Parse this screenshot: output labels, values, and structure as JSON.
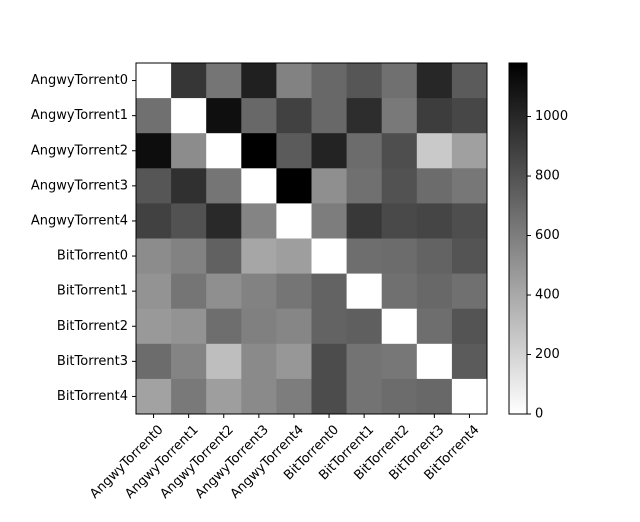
{
  "chart_data": {
    "type": "heatmap",
    "title": "",
    "xlabel": "",
    "ylabel": "",
    "colormap": "gray_r",
    "colors": {
      "low": "#ffffff",
      "high": "#000000",
      "axis": "#000000"
    },
    "x_categories": [
      "AngwyTorrent0",
      "AngwyTorrent1",
      "AngwyTorrent2",
      "AngwyTorrent3",
      "AngwyTorrent4",
      "BitTorrent0",
      "BitTorrent1",
      "BitTorrent2",
      "BitTorrent3",
      "BitTorrent4"
    ],
    "y_categories": [
      "AngwyTorrent0",
      "AngwyTorrent1",
      "AngwyTorrent2",
      "AngwyTorrent3",
      "AngwyTorrent4",
      "BitTorrent0",
      "BitTorrent1",
      "BitTorrent2",
      "BitTorrent3",
      "BitTorrent4"
    ],
    "values": [
      [
        0,
        930,
        640,
        1030,
        580,
        700,
        780,
        660,
        1000,
        760
      ],
      [
        660,
        0,
        1110,
        700,
        880,
        700,
        970,
        620,
        900,
        850
      ],
      [
        1120,
        530,
        0,
        1180,
        760,
        1020,
        680,
        820,
        250,
        440
      ],
      [
        780,
        960,
        640,
        0,
        1180,
        520,
        660,
        800,
        680,
        630
      ],
      [
        880,
        800,
        990,
        570,
        0,
        600,
        920,
        840,
        860,
        820
      ],
      [
        530,
        580,
        730,
        410,
        450,
        0,
        670,
        680,
        720,
        790
      ],
      [
        500,
        640,
        520,
        580,
        640,
        720,
        0,
        660,
        700,
        660
      ],
      [
        470,
        500,
        670,
        590,
        560,
        720,
        740,
        0,
        670,
        790
      ],
      [
        680,
        570,
        300,
        540,
        480,
        830,
        650,
        630,
        0,
        760
      ],
      [
        430,
        620,
        450,
        540,
        600,
        830,
        650,
        680,
        700,
        0
      ]
    ],
    "colorbar": {
      "min": 0,
      "max": 1180,
      "ticks": [
        "0",
        "200",
        "400",
        "600",
        "800",
        "1000"
      ]
    },
    "grid": false
  }
}
